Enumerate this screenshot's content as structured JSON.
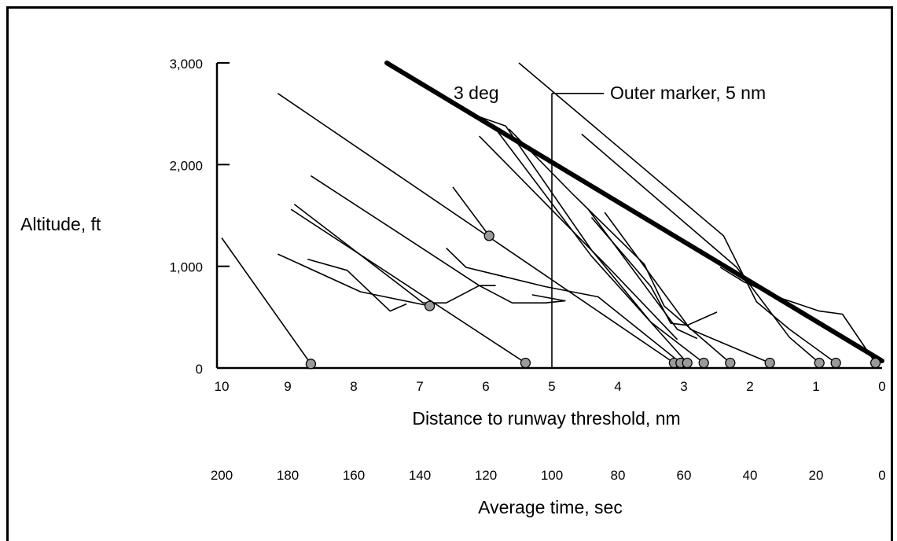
{
  "chart_data": {
    "type": "line",
    "title": "",
    "xlabel": "Distance to runway threshold, nm",
    "ylabel": "Altitude, ft",
    "secondary_xlabel": "Average time, sec",
    "xlim": [
      10,
      0
    ],
    "ylim": [
      0,
      3000
    ],
    "x_ticks": [
      "10",
      "9",
      "8",
      "7",
      "6",
      "5",
      "4",
      "3",
      "2",
      "1",
      "0"
    ],
    "y_ticks": [
      "0",
      "1,000",
      "2,000",
      "3,000"
    ],
    "secondary_x_ticks": [
      "200",
      "180",
      "160",
      "140",
      "120",
      "100",
      "80",
      "60",
      "40",
      "20",
      "0"
    ],
    "grid": false,
    "glide_slope": {
      "label": "3 deg",
      "points": [
        [
          7.5,
          3000
        ],
        [
          0,
          70
        ]
      ]
    },
    "outer_marker": {
      "label": "Outer marker, 5 nm",
      "x": 5,
      "ytop": 2700
    },
    "series": [
      {
        "points": [
          [
            10,
            1280
          ],
          [
            8.65,
            40
          ]
        ],
        "end_marker": true
      },
      {
        "points": [
          [
            9.15,
            1120
          ],
          [
            7.9,
            750
          ],
          [
            6.85,
            610
          ]
        ],
        "end_marker": true
      },
      {
        "points": [
          [
            8.95,
            1560
          ],
          [
            5.4,
            50
          ]
        ],
        "end_marker": true
      },
      {
        "points": [
          [
            8.9,
            1610
          ],
          [
            6.95,
            640
          ],
          [
            6.6,
            640
          ],
          [
            6.1,
            810
          ],
          [
            5.85,
            810
          ]
        ],
        "end_marker": false
      },
      {
        "points": [
          [
            8.7,
            1070
          ],
          [
            8.1,
            960
          ],
          [
            7.45,
            560
          ],
          [
            7.2,
            630
          ]
        ],
        "end_marker": false
      },
      {
        "points": [
          [
            8.65,
            1890
          ],
          [
            7.3,
            1320
          ],
          [
            6.1,
            810
          ],
          [
            5.6,
            640
          ],
          [
            5.1,
            640
          ],
          [
            4.8,
            660
          ],
          [
            5.3,
            720
          ]
        ],
        "end_marker": false
      },
      {
        "points": [
          [
            9.15,
            2700
          ],
          [
            3.15,
            50
          ]
        ],
        "end_marker": true
      },
      {
        "points": [
          [
            6.5,
            1780
          ],
          [
            5.95,
            1300
          ]
        ],
        "end_marker": true
      },
      {
        "points": [
          [
            6.6,
            1180
          ],
          [
            6.3,
            990
          ],
          [
            5.1,
            800
          ],
          [
            4.3,
            700
          ],
          [
            3.05,
            50
          ]
        ],
        "end_marker": true
      },
      {
        "points": [
          [
            6.1,
            2470
          ],
          [
            5.7,
            2380
          ],
          [
            4.4,
            1160
          ],
          [
            3.5,
            450
          ],
          [
            2.7,
            50
          ]
        ],
        "end_marker": true
      },
      {
        "points": [
          [
            5.85,
            2350
          ],
          [
            4.4,
            1100
          ],
          [
            2.95,
            50
          ]
        ],
        "end_marker": true
      },
      {
        "points": [
          [
            6.1,
            2280
          ],
          [
            4.1,
            960
          ],
          [
            3.1,
            280
          ]
        ],
        "end_marker": false
      },
      {
        "points": [
          [
            5.65,
            2350
          ],
          [
            4.7,
            1720
          ],
          [
            3.6,
            1020
          ],
          [
            3.3,
            610
          ],
          [
            2.3,
            50
          ]
        ],
        "end_marker": true
      },
      {
        "points": [
          [
            4.45,
            1560
          ],
          [
            3.1,
            380
          ],
          [
            2.8,
            290
          ]
        ],
        "end_marker": false
      },
      {
        "points": [
          [
            4.4,
            1480
          ],
          [
            3.5,
            800
          ],
          [
            3.2,
            440
          ],
          [
            2.95,
            420
          ],
          [
            2.5,
            550
          ]
        ],
        "end_marker": false
      },
      {
        "points": [
          [
            4.2,
            1530
          ],
          [
            2.9,
            380
          ],
          [
            1.7,
            50
          ]
        ],
        "end_marker": true
      },
      {
        "points": [
          [
            5.5,
            3000
          ],
          [
            2.4,
            1300
          ],
          [
            1.9,
            650
          ],
          [
            1.4,
            380
          ],
          [
            0.7,
            50
          ]
        ],
        "end_marker": true
      },
      {
        "points": [
          [
            4.55,
            2300
          ],
          [
            2.2,
            990
          ],
          [
            1.4,
            300
          ],
          [
            0.95,
            50
          ]
        ],
        "end_marker": true
      },
      {
        "points": [
          [
            2.45,
            990
          ],
          [
            2.1,
            850
          ],
          [
            1.5,
            680
          ],
          [
            0.95,
            560
          ],
          [
            0.6,
            530
          ],
          [
            0.1,
            50
          ]
        ],
        "end_marker": true
      }
    ]
  }
}
